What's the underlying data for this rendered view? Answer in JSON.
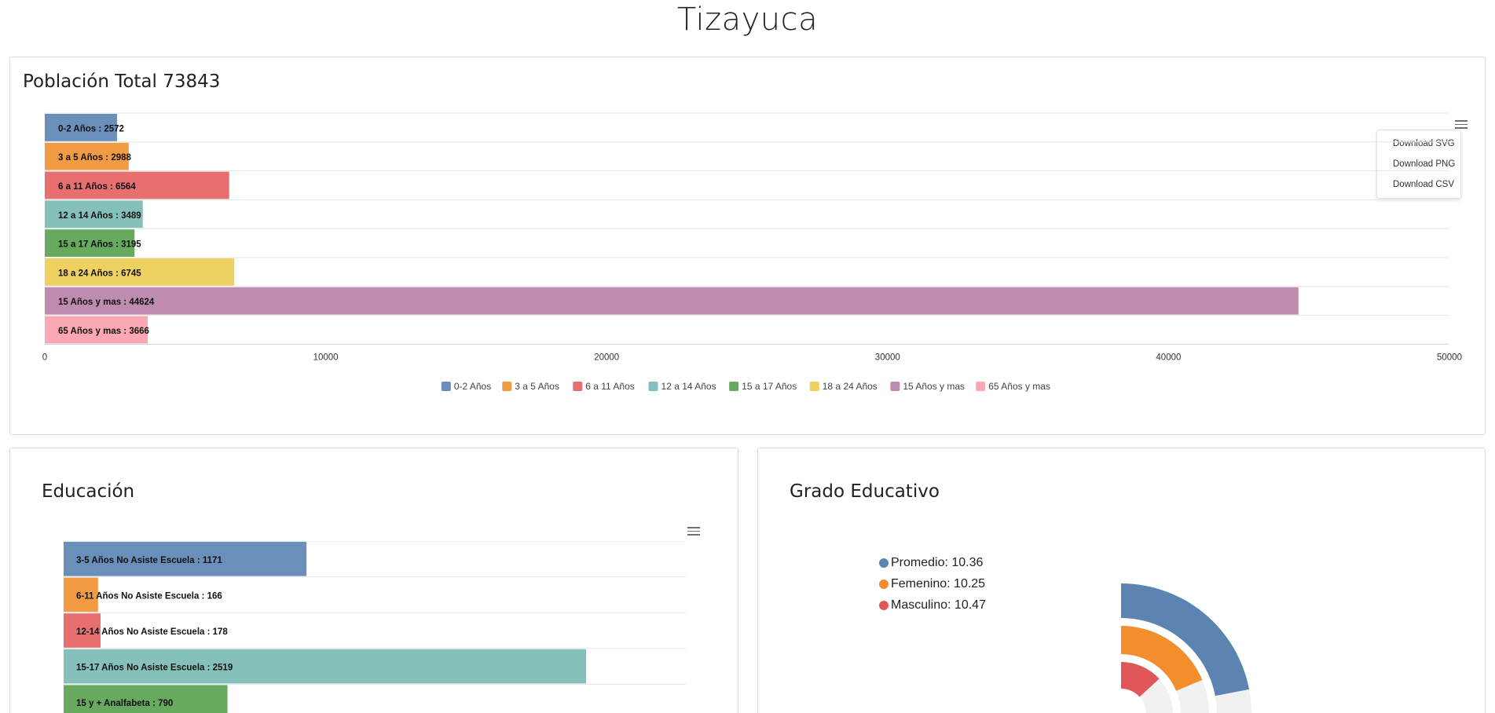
{
  "page": {
    "title": "Tizayuca"
  },
  "poblacion": {
    "title": "Población Total 73843",
    "export_menu": [
      "Download SVG",
      "Download PNG",
      "Download CSV"
    ]
  },
  "educacion": {
    "title": "Educación"
  },
  "grado": {
    "title": "Grado Educativo",
    "legend": [
      {
        "label": "Promedio: 10.36",
        "color": "#5b84b1"
      },
      {
        "label": "Femenino: 10.25",
        "color": "#f28e2b"
      },
      {
        "label": "Masculino: 10.47",
        "color": "#e15759"
      }
    ]
  },
  "chart_data": [
    {
      "type": "bar",
      "orientation": "horizontal",
      "categories": [
        "0-2 Años",
        "3 a 5 Años",
        "6 a 11 Años",
        "12 a 14 Años",
        "15 a 17 Años",
        "18 a 24 Años",
        "15 Años y mas",
        "65 Años y mas"
      ],
      "values": [
        2572,
        2988,
        6564,
        3489,
        3195,
        6745,
        44624,
        3666
      ],
      "data_labels": [
        "0-2 Años : 2572",
        "3 a 5 Años : 2988",
        "6 a 11 Años : 6564",
        "12 a 14 Años : 3489",
        "15 a 17 Años : 3195",
        "18 a 24 Años : 6745",
        "15 Años y mas : 44624",
        "65 Años y mas : 3666"
      ],
      "colors": [
        "#6a8fb8",
        "#f29b45",
        "#e86f6f",
        "#86c0ba",
        "#66a95f",
        "#eed160",
        "#bd8cae",
        "#fba8b4"
      ],
      "xlim": [
        0,
        50000
      ],
      "xticks": [
        "0",
        "10000",
        "20000",
        "30000",
        "40000",
        "50000"
      ],
      "legend": [
        "0-2 Años",
        "3 a 5 Años",
        "6 a 11 Años",
        "12 a 14 Años",
        "15 a 17 Años",
        "18 a 24 Años",
        "15 Años y mas",
        "65 Años y mas"
      ],
      "legend_position": "bottom",
      "grid": true
    },
    {
      "type": "bar",
      "orientation": "horizontal",
      "categories": [
        "3-5 Años No Asiste Escuela",
        "6-11 Años No Asiste Escuela",
        "12-14 Años No Asiste Escuela",
        "15-17 Años No Asiste Escuela",
        "15 y + Analfabeta"
      ],
      "values": [
        1171,
        166,
        178,
        2519,
        790
      ],
      "data_labels": [
        "3-5 Años No Asiste Escuela : 1171",
        "6-11 Años No Asiste Escuela : 166",
        "12-14 Años No Asiste Escuela : 178",
        "15-17 Años No Asiste Escuela : 2519",
        "15 y + Analfabeta : 790"
      ],
      "colors": [
        "#6a8fb8",
        "#f29b45",
        "#e86f6f",
        "#86c0ba",
        "#66a95f"
      ],
      "xlim": [
        0,
        3000
      ],
      "grid": true
    },
    {
      "type": "pie",
      "variant": "radial-bar",
      "categories": [
        "Promedio",
        "Femenino",
        "Masculino"
      ],
      "values": [
        10.36,
        10.25,
        10.47
      ],
      "colors": [
        "#5b84b1",
        "#f28e2b",
        "#e15759"
      ]
    }
  ]
}
